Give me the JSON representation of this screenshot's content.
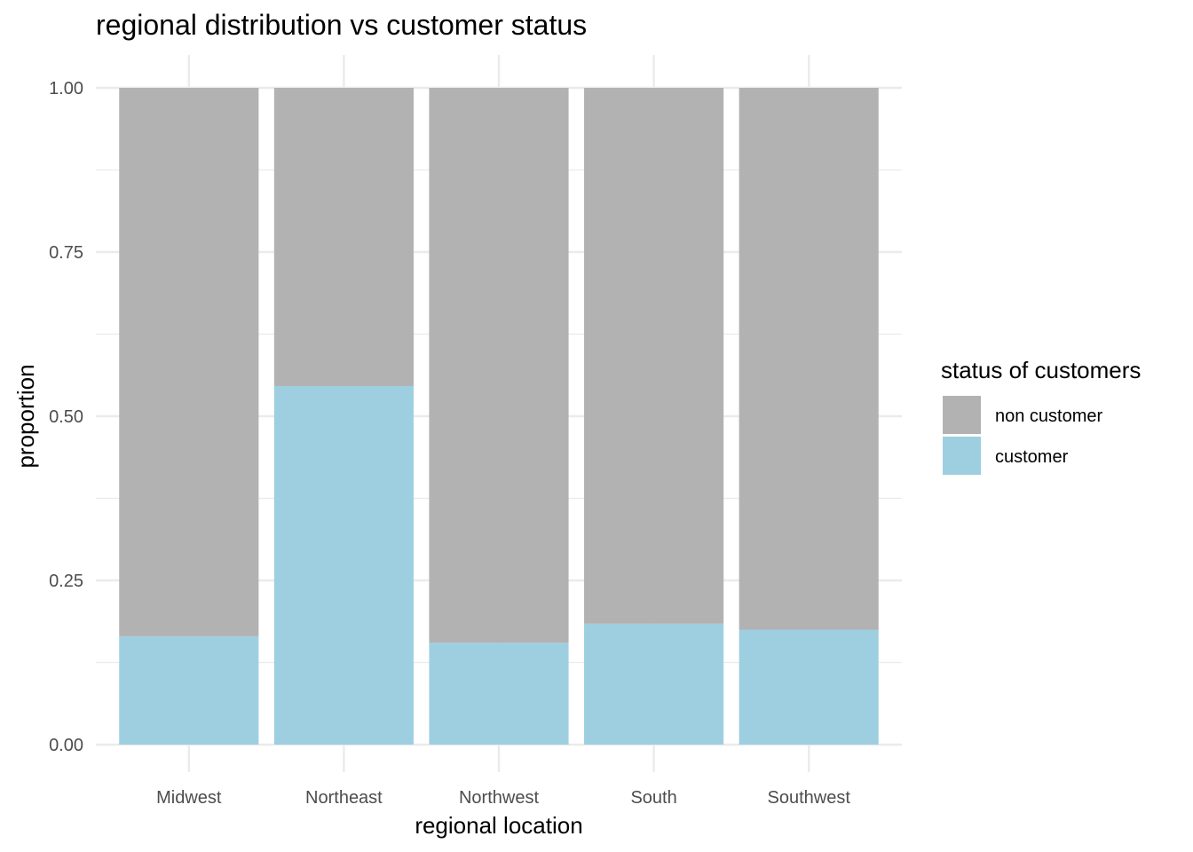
{
  "chart_data": {
    "type": "bar",
    "stacked": true,
    "title": "regional distribution vs customer status",
    "xlabel": "regional location",
    "ylabel": "proportion",
    "ylim": [
      0,
      1
    ],
    "yticks": [
      "0.00",
      "0.25",
      "0.50",
      "0.75",
      "1.00"
    ],
    "ytick_values": [
      0,
      0.25,
      0.5,
      0.75,
      1.0
    ],
    "grid": true,
    "categories": [
      "Midwest",
      "Northeast",
      "Northwest",
      "South",
      "Southwest"
    ],
    "series": [
      {
        "name": "customer",
        "color": "#9ecfe1",
        "values": [
          0.165,
          0.546,
          0.155,
          0.184,
          0.175
        ]
      },
      {
        "name": "non customer",
        "color": "#b2b2b2",
        "values": [
          0.835,
          0.454,
          0.845,
          0.816,
          0.825
        ]
      }
    ],
    "legend": {
      "title": "status of customers",
      "placement": "right",
      "entries": [
        {
          "label": "non customer",
          "color": "#b2b2b2"
        },
        {
          "label": "customer",
          "color": "#9ecfe1"
        }
      ]
    }
  }
}
